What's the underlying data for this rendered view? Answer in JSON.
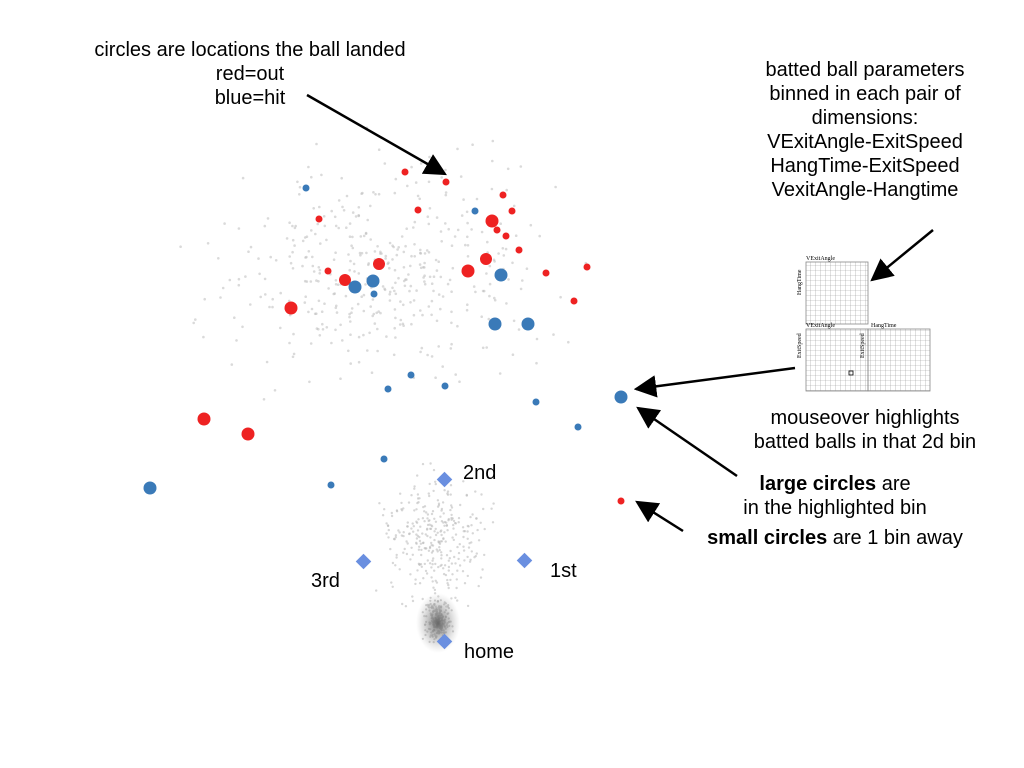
{
  "annotations": {
    "circles": [
      "circles are locations the ball landed",
      "red=out",
      "blue=hit"
    ],
    "parameters": [
      "batted ball parameters",
      "binned in each pair of",
      "dimensions:",
      "VExitAngle-ExitSpeed",
      "HangTime-ExitSpeed",
      "VexitAngle-Hangtime"
    ],
    "mouseover": [
      "mouseover highlights",
      "batted balls in that 2d bin"
    ],
    "large": {
      "bold": "large circles",
      "rest": " are",
      "line2": "in the highlighted bin"
    },
    "small": {
      "bold": "small circles",
      "rest": " are 1 bin away"
    }
  },
  "bases": {
    "second": "2nd",
    "first": "1st",
    "third": "3rd",
    "home": "home"
  },
  "mini_grids": {
    "top": {
      "title": "VExitAngle",
      "side": "HangTime"
    },
    "bottom_left": {
      "title": "VExitAngle",
      "side": "ExitSpeed"
    },
    "bottom_right": {
      "title": "HangTime",
      "side": "ExitSpeed"
    }
  },
  "colors": {
    "out": "#ee2222",
    "hit": "#3a7ab8",
    "base": "#6a8fe0",
    "background_points": "#c8c8c8"
  },
  "legend": {
    "red": "out",
    "blue": "hit"
  }
}
